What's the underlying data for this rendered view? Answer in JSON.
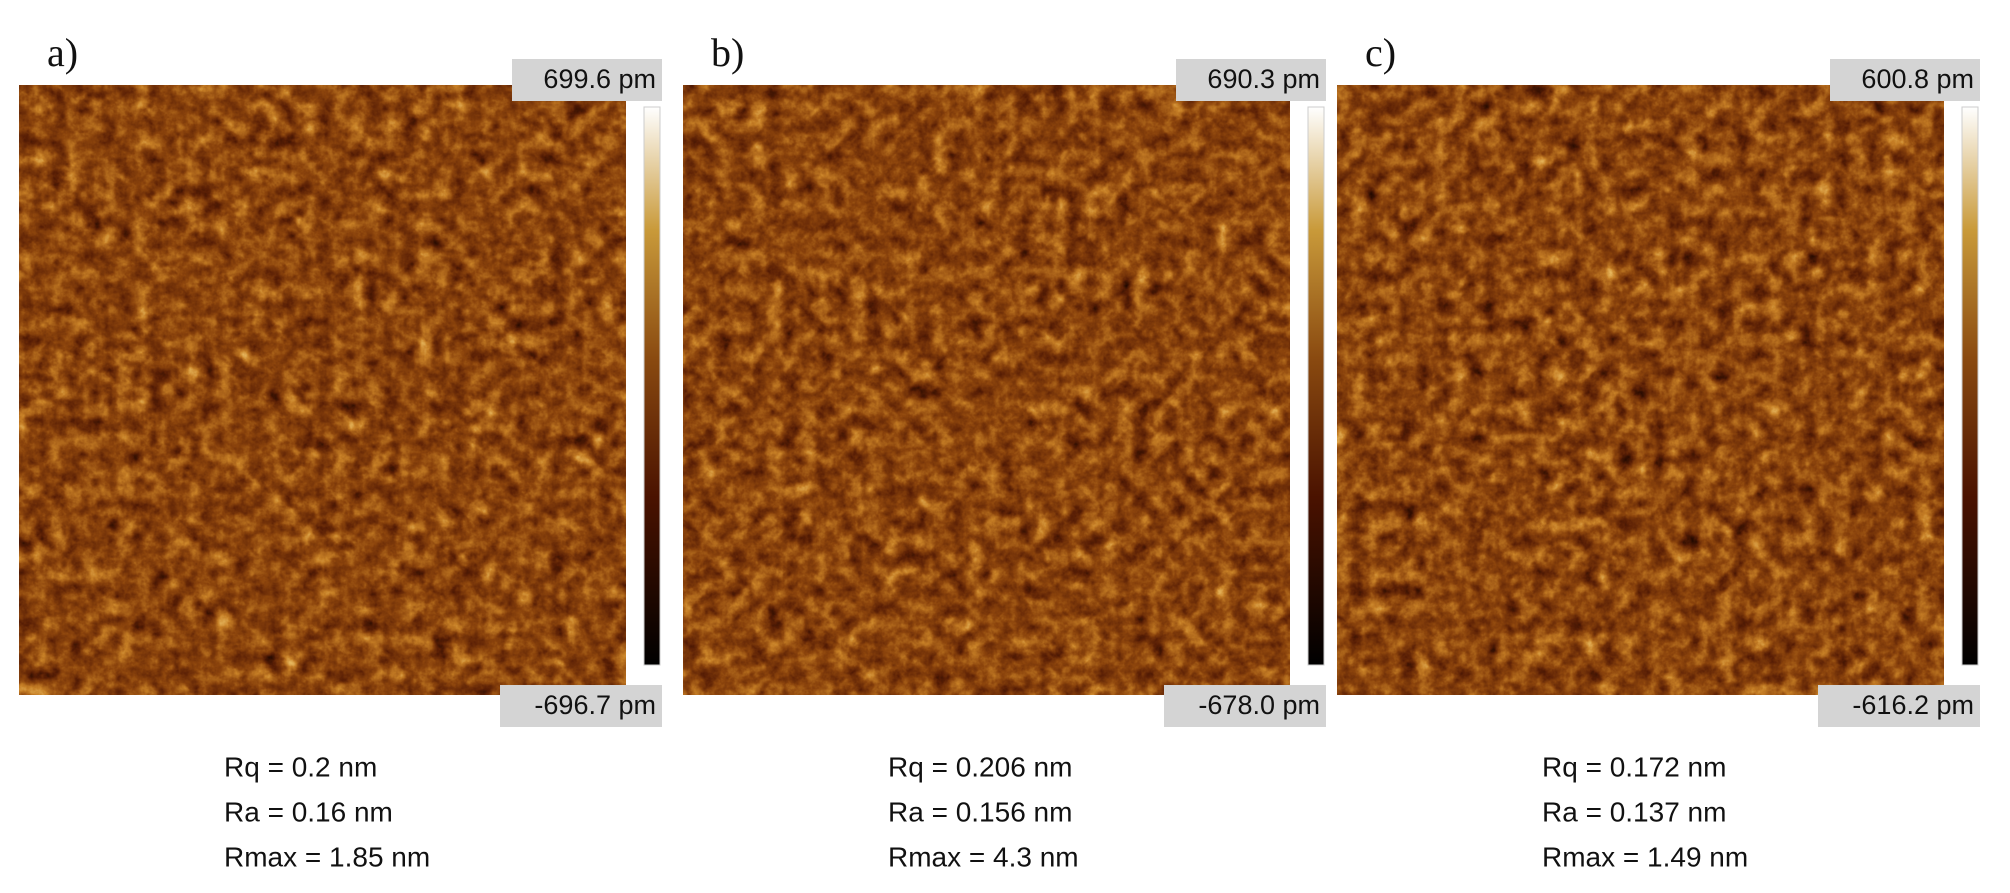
{
  "panels": [
    {
      "label": "a)",
      "max": "699.6 pm",
      "min": "-696.7 pm",
      "stats": [
        "Rq = 0.2 nm",
        "Ra = 0.16 nm",
        "Rmax = 1.85 nm"
      ]
    },
    {
      "label": "b)",
      "max": "690.3 pm",
      "min": "-678.0 pm",
      "stats": [
        "Rq = 0.206 nm",
        "Ra = 0.156 nm",
        "Rmax = 4.3 nm"
      ]
    },
    {
      "label": "c)",
      "max": "600.8 pm",
      "min": "-616.2 pm",
      "stats": [
        "Rq = 0.172 nm",
        "Ra = 0.137 nm",
        "Rmax = 1.49 nm"
      ]
    }
  ]
}
